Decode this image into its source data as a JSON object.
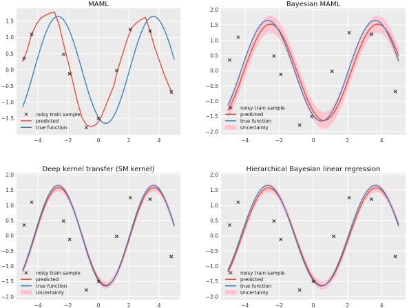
{
  "figure": {
    "legend_labels": {
      "train": "noisy train sample",
      "predicted": "predicted",
      "true": "true function",
      "uncertainty": "Uncertainty"
    },
    "colors": {
      "axes_bg": "#ebebeb",
      "grid": "#ffffff",
      "predicted": "#e8412c",
      "true": "#2b7bba",
      "band": "#ffc0cb",
      "marker": "#222222"
    }
  },
  "chart_data": [
    {
      "type": "line",
      "title": "MAML",
      "xlim": [
        -5.4,
        5.4
      ],
      "ylim": [
        -2.0,
        1.9
      ],
      "xticks": [
        -4,
        -2,
        0,
        2,
        4
      ],
      "yticks": [
        -1.5,
        -1.0,
        -0.5,
        0.0,
        0.5,
        1.0,
        1.5
      ],
      "ytick_labels": [
        "−1.5",
        "−1.0",
        "−0.5",
        "0.0",
        "0.5",
        "1.0",
        "1.5"
      ],
      "xtick_labels": [
        "−4",
        "−2",
        "0",
        "2",
        "4"
      ],
      "grid": true,
      "legend": "lower-left",
      "legend_entries": [
        "train",
        "predicted",
        "true"
      ],
      "train_points": {
        "x": [
          -4.9,
          -4.4,
          -2.3,
          -1.9,
          -0.8,
          0.0,
          1.2,
          2.1,
          3.4,
          4.8
        ],
        "y": [
          0.35,
          1.1,
          0.48,
          -0.12,
          -1.78,
          -1.5,
          -0.02,
          1.25,
          1.2,
          -0.68
        ]
      },
      "true_function": {
        "amplitude": 1.65,
        "frequency": 1.0,
        "phase": -2.05,
        "x_range": [
          -5.0,
          5.0
        ]
      },
      "predicted": {
        "x": [
          -5.0,
          -4.7,
          -4.4,
          -4.1,
          -3.8,
          -3.5,
          -3.2,
          -2.9,
          -2.6,
          -2.3,
          -2.0,
          -1.7,
          -1.4,
          -1.1,
          -0.8,
          -0.5,
          -0.2,
          0.1,
          0.4,
          0.7,
          1.0,
          1.3,
          1.6,
          1.9,
          2.2,
          2.5,
          2.8,
          3.1,
          3.4,
          3.7,
          4.0,
          4.3,
          4.6,
          4.9
        ],
        "y": [
          0.25,
          0.6,
          1.1,
          1.4,
          1.6,
          1.68,
          1.75,
          1.78,
          1.4,
          0.8,
          0.25,
          -0.35,
          -0.95,
          -1.45,
          -1.7,
          -1.75,
          -1.7,
          -1.55,
          -1.2,
          -0.85,
          -0.5,
          0.05,
          0.5,
          0.95,
          1.3,
          1.45,
          1.55,
          1.62,
          1.2,
          0.7,
          0.3,
          -0.1,
          -0.45,
          -0.75
        ]
      }
    },
    {
      "type": "line",
      "title": "Bayesian MAML",
      "xlim": [
        -5.4,
        5.4
      ],
      "ylim": [
        -2.1,
        2.05
      ],
      "xticks": [
        -4,
        -2,
        0,
        2,
        4
      ],
      "yticks": [
        -2.0,
        -1.5,
        -1.0,
        -0.5,
        0.0,
        0.5,
        1.0,
        1.5,
        2.0
      ],
      "ytick_labels": [
        "−2.0",
        "−1.5",
        "−1.0",
        "−0.5",
        "0.0",
        "0.5",
        "1.0",
        "1.5",
        "2.0"
      ],
      "xtick_labels": [
        "−4",
        "−2",
        "0",
        "2",
        "4"
      ],
      "grid": true,
      "legend": "lower-left",
      "legend_entries": [
        "train",
        "predicted",
        "true",
        "uncertainty"
      ],
      "train_points": {
        "x": [
          -4.9,
          -4.4,
          -2.3,
          -1.9,
          -0.8,
          -0.1,
          1.1,
          2.1,
          3.4,
          4.8
        ],
        "y": [
          0.35,
          1.1,
          0.48,
          -0.12,
          -1.78,
          -1.5,
          -0.02,
          1.25,
          1.2,
          -0.68
        ]
      },
      "true_function": {
        "amplitude": 1.65,
        "frequency": 1.0,
        "phase": -2.05,
        "x_range": [
          -5.0,
          5.0
        ]
      },
      "predicted_sine": {
        "amplitude": 1.58,
        "frequency": 1.0,
        "phase": -2.2,
        "offset": -0.05
      },
      "uncertainty_halfwidth": 0.28
    },
    {
      "type": "line",
      "title": "Deep kernel transfer (SM kernel)",
      "xlim": [
        -5.4,
        5.4
      ],
      "ylim": [
        -2.1,
        2.05
      ],
      "xticks": [
        -4,
        -2,
        0,
        2,
        4
      ],
      "yticks": [
        -2.0,
        -1.5,
        -1.0,
        -0.5,
        0.0,
        0.5,
        1.0,
        1.5,
        2.0
      ],
      "ytick_labels": [
        "−2.0",
        "−1.5",
        "−1.0",
        "−0.5",
        "0.0",
        "0.5",
        "1.0",
        "1.5",
        "2.0"
      ],
      "xtick_labels": [
        "−4",
        "−2",
        "0",
        "2",
        "4"
      ],
      "grid": true,
      "legend": "lower-left",
      "legend_entries": [
        "train",
        "predicted",
        "true",
        "uncertainty"
      ],
      "train_points": {
        "x": [
          -4.9,
          -4.4,
          -2.3,
          -1.9,
          -0.8,
          0.0,
          1.2,
          2.1,
          3.4,
          4.8
        ],
        "y": [
          0.35,
          1.1,
          0.48,
          -0.12,
          -1.78,
          -1.5,
          -0.02,
          1.25,
          1.2,
          -0.68
        ]
      },
      "true_function": {
        "amplitude": 1.65,
        "frequency": 1.0,
        "phase": -2.05,
        "x_range": [
          -5.0,
          5.0
        ]
      },
      "predicted_sine": {
        "amplitude": 1.6,
        "frequency": 1.0,
        "phase": -2.08,
        "offset": -0.02
      },
      "uncertainty_halfwidth": 0.12
    },
    {
      "type": "line",
      "title": "Hierarchical Bayesian linear regression",
      "xlim": [
        -5.4,
        5.4
      ],
      "ylim": [
        -2.1,
        2.05
      ],
      "xticks": [
        -4,
        -2,
        0,
        2,
        4
      ],
      "yticks": [
        -2.0,
        -1.5,
        -1.0,
        -0.5,
        0.0,
        0.5,
        1.0,
        1.5,
        2.0
      ],
      "ytick_labels": [
        "−2.0",
        "−1.5",
        "−1.0",
        "−0.5",
        "0.0",
        "0.5",
        "1.0",
        "1.5",
        "2.0"
      ],
      "xtick_labels": [
        "−4",
        "−2",
        "0",
        "2",
        "4"
      ],
      "grid": true,
      "legend": "lower-left",
      "legend_entries": [
        "train",
        "predicted",
        "true",
        "uncertainty"
      ],
      "train_points": {
        "x": [
          -4.9,
          -4.4,
          -2.3,
          -1.9,
          -0.8,
          0.0,
          1.2,
          2.1,
          3.4,
          4.8
        ],
        "y": [
          0.35,
          1.1,
          0.48,
          -0.12,
          -1.78,
          -1.5,
          -0.02,
          1.25,
          1.2,
          -0.68
        ]
      },
      "true_function": {
        "amplitude": 1.65,
        "frequency": 1.0,
        "phase": -2.05,
        "x_range": [
          -5.0,
          5.0
        ]
      },
      "predicted_sine": {
        "amplitude": 1.6,
        "frequency": 1.0,
        "phase": -2.1,
        "offset": -0.03
      },
      "uncertainty_halfwidth": 0.14
    }
  ]
}
